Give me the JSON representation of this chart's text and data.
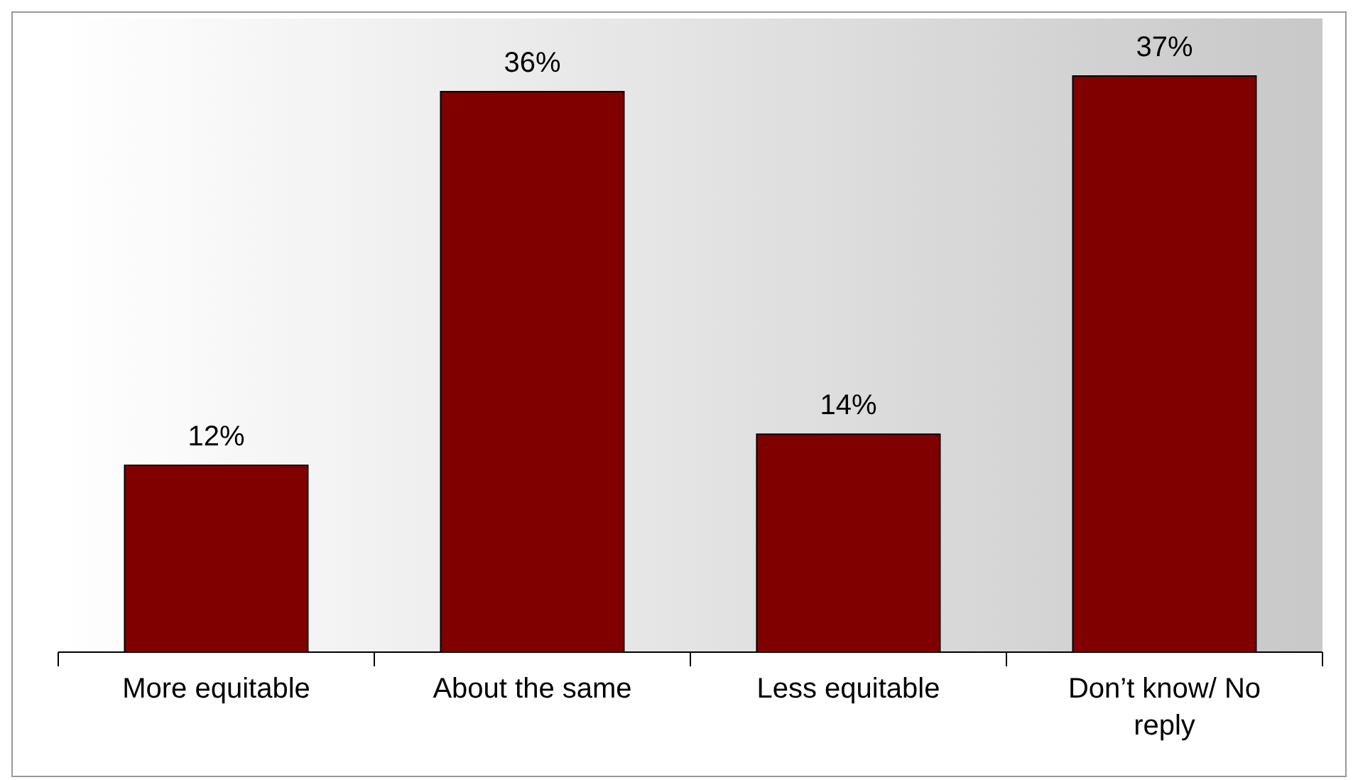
{
  "chart_data": {
    "type": "bar",
    "categories": [
      "More equitable",
      "About the same",
      "Less equitable",
      "Don’t know/ No reply"
    ],
    "values": [
      12,
      36,
      14,
      37
    ],
    "value_labels": [
      "12%",
      "36%",
      "14%",
      "37%"
    ],
    "color": "#800000"
  }
}
